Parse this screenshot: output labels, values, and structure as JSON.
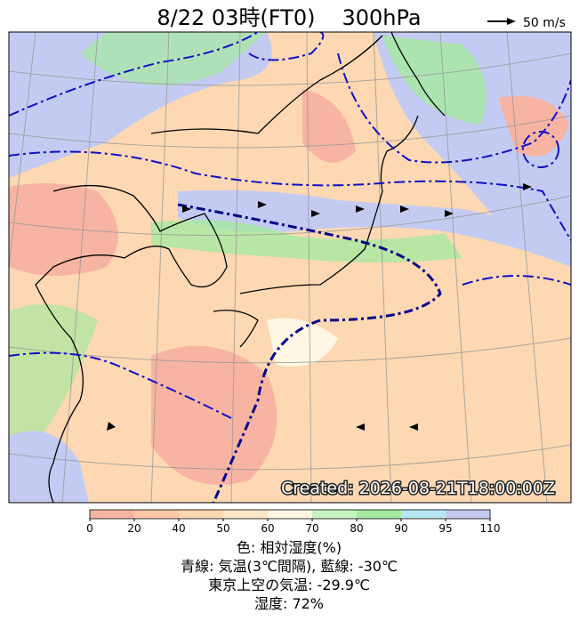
{
  "header": {
    "title": "8/22 03時(FT0)",
    "level": "300hPa",
    "wind_scale": "50 m/s"
  },
  "map": {
    "created": "Created: 2026-08-21T18:00:00Z"
  },
  "colorbar": {
    "ticks": [
      0,
      20,
      40,
      50,
      60,
      70,
      80,
      90,
      95,
      110
    ],
    "colors": [
      "#f8b4a2",
      "#fbc8a8",
      "#fdd8b2",
      "#fee6c6",
      "#fff6e4",
      "#c8f2c0",
      "#a6eaa0",
      "#b6e8f4",
      "#c4cbf2"
    ]
  },
  "caption": [
    "色: 相対湿度(%)",
    "青線: 気温(3℃間隔), 藍線: -30℃",
    "東京上空の気温: -29.9℃",
    "湿度: 72%"
  ]
}
